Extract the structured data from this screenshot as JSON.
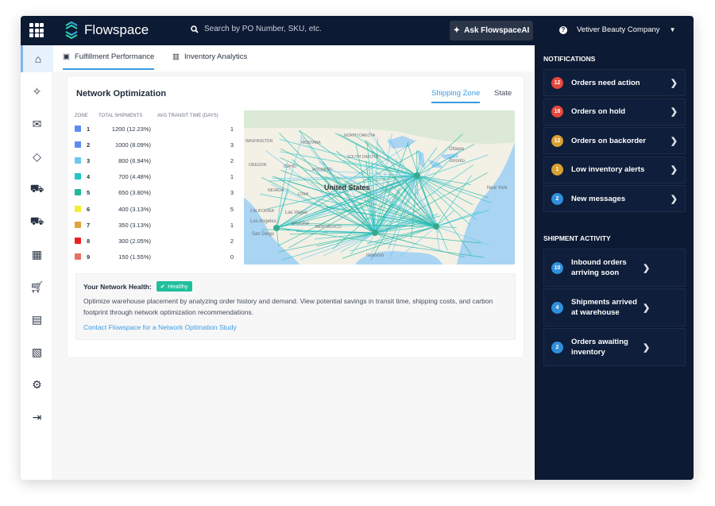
{
  "header": {
    "brand": "Flowspace",
    "search_placeholder": "Search by PO Number, SKU, etc.",
    "ask_label": "Ask FlowspaceAI",
    "company": "Vetiver Beauty Company"
  },
  "sidebar": {
    "items": [
      {
        "icon": "home-icon"
      },
      {
        "icon": "sparkles-icon"
      },
      {
        "icon": "mail-icon"
      },
      {
        "icon": "tag-icon"
      },
      {
        "icon": "delivery-truck-icon"
      },
      {
        "icon": "shipping-truck-icon"
      },
      {
        "icon": "warehouse-icon"
      },
      {
        "icon": "cart-icon"
      },
      {
        "icon": "invoice-icon"
      },
      {
        "icon": "report-icon"
      },
      {
        "icon": "gear-icon"
      },
      {
        "icon": "logout-icon"
      }
    ]
  },
  "tabs": [
    {
      "label": "Fulfillment Performance",
      "active": true
    },
    {
      "label": "Inventory Analytics",
      "active": false
    }
  ],
  "card": {
    "title": "Network Optimization",
    "toggle": [
      {
        "label": "Shipping Zone",
        "active": true
      },
      {
        "label": "State",
        "active": false
      }
    ],
    "columns": [
      "ZONE",
      "TOTAL SHIPMENTS",
      "AVG TRANSIT TIME (DAYS)"
    ],
    "rows": [
      {
        "zone": "1",
        "shipments": "1200 (12.23%)",
        "transit": "1",
        "color": "#5b8def"
      },
      {
        "zone": "2",
        "shipments": "1000 (8.09%)",
        "transit": "3",
        "color": "#5b8def"
      },
      {
        "zone": "3",
        "shipments": "800 (6.94%)",
        "transit": "2",
        "color": "#6cc8f0"
      },
      {
        "zone": "4",
        "shipments": "700 (4.48%)",
        "transit": "1",
        "color": "#23c6c8"
      },
      {
        "zone": "5",
        "shipments": "650 (3.80%)",
        "transit": "3",
        "color": "#1fb99a"
      },
      {
        "zone": "6",
        "shipments": "400 (3.13%)",
        "transit": "5",
        "color": "#f2ec3a"
      },
      {
        "zone": "7",
        "shipments": "350 (3.13%)",
        "transit": "1",
        "color": "#e0a23c"
      },
      {
        "zone": "8",
        "shipments": "300 (2.05%)",
        "transit": "2",
        "color": "#e8201e"
      },
      {
        "zone": "9",
        "shipments": "150 (1.55%)",
        "transit": "0",
        "color": "#e86f63"
      }
    ],
    "map_labels": [
      "WASHINGTON",
      "MONTANA",
      "OREGON",
      "IDAHO",
      "WYOMING",
      "NEVADA",
      "UTAH",
      "CALIFORNIA",
      "ARIZONA",
      "NEW MEXICO",
      "NORTH DAKOTA",
      "SOUTH DAKOTA",
      "United States",
      "Ottawa",
      "Toronto",
      "New York",
      "Los Angeles",
      "Las Vegas",
      "San Diego",
      "Houston"
    ],
    "health_label": "Your Network Health:",
    "health_status": "Healthy",
    "health_color": "#1fbf9c",
    "description": "Optimize warehouse placement by analyzing order history and demand. View potential savings in transit time, shipping costs, and carbon footprint through network optimization recommendations.",
    "link": "Contact Flowspace for a Network Optimation Study"
  },
  "notifications": {
    "title": "NOTIFICATIONS",
    "items": [
      {
        "count": "12",
        "label": "Orders need action",
        "color": "#e5483a"
      },
      {
        "count": "18",
        "label": "Orders on hold",
        "color": "#e5483a"
      },
      {
        "count": "12",
        "label": "Orders on backorder",
        "color": "#d9a032"
      },
      {
        "count": "1",
        "label": "Low inventory alerts",
        "color": "#d9a032"
      },
      {
        "count": "2",
        "label": "New messages",
        "color": "#2f8fdc"
      }
    ]
  },
  "shipment_activity": {
    "title": "SHIPMENT ACTIVITY",
    "items": [
      {
        "count": "10",
        "label": "Inbound orders arriving soon",
        "color": "#2f8fdc"
      },
      {
        "count": "4",
        "label": "Shipments arrived at warehouse",
        "color": "#2f8fdc"
      },
      {
        "count": "2",
        "label": "Orders awaiting inventory",
        "color": "#2f8fdc"
      }
    ]
  }
}
